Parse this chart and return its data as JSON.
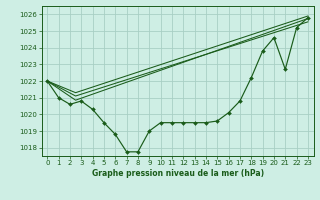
{
  "background_color": "#ceeee4",
  "grid_color": "#a8cfc4",
  "line_color": "#1a5c1a",
  "xlabel": "Graphe pression niveau de la mer (hPa)",
  "xlabel_color": "#1a5c1a",
  "ylim": [
    1017.5,
    1026.5
  ],
  "xlim": [
    -0.5,
    23.5
  ],
  "yticks": [
    1018,
    1019,
    1020,
    1021,
    1022,
    1023,
    1024,
    1025,
    1026
  ],
  "xticks": [
    0,
    1,
    2,
    3,
    4,
    5,
    6,
    7,
    8,
    9,
    10,
    11,
    12,
    13,
    14,
    15,
    16,
    17,
    18,
    19,
    20,
    21,
    22,
    23
  ],
  "series1_x": [
    0,
    1,
    2,
    3,
    4,
    5,
    6,
    7,
    8,
    9,
    10,
    11,
    12,
    13,
    14,
    15,
    16,
    17,
    18,
    19,
    20,
    21,
    22,
    23
  ],
  "series1_y": [
    1022.0,
    1021.0,
    1020.6,
    1020.8,
    1020.3,
    1019.5,
    1018.8,
    1017.75,
    1017.75,
    1019.0,
    1019.5,
    1019.5,
    1019.5,
    1019.5,
    1019.5,
    1019.6,
    1020.1,
    1020.8,
    1022.2,
    1023.8,
    1024.6,
    1022.7,
    1025.2,
    1025.8
  ],
  "trend1_x": [
    0,
    2.5,
    23
  ],
  "trend1_y": [
    1022.0,
    1020.85,
    1025.75
  ],
  "trend2_x": [
    0,
    2.5,
    23
  ],
  "trend2_y": [
    1022.0,
    1021.1,
    1025.55
  ],
  "trend3_x": [
    0,
    2.5,
    23
  ],
  "trend3_y": [
    1022.0,
    1021.3,
    1025.9
  ]
}
